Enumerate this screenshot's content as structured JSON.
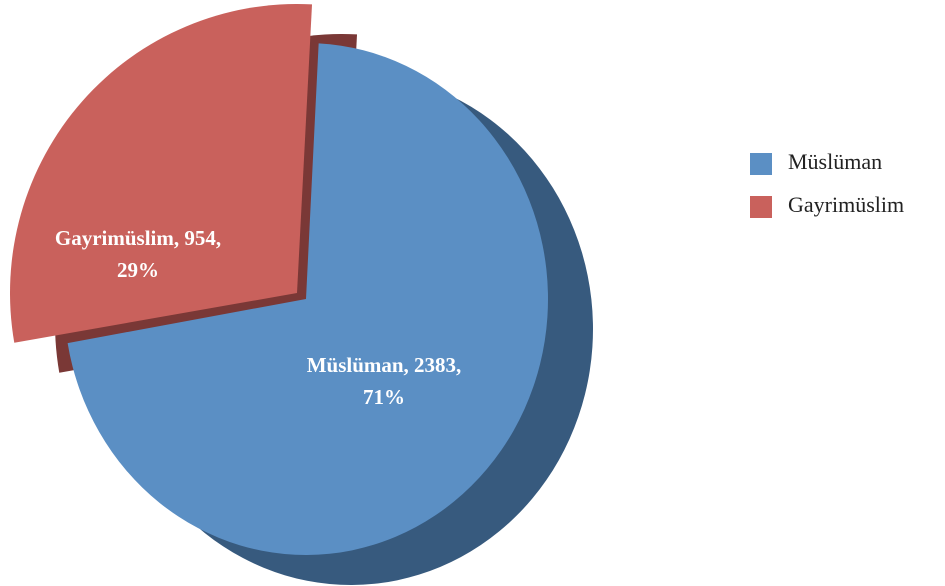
{
  "chart_data": {
    "type": "pie",
    "categories": [
      "Müslüman",
      "Gayrimüslim"
    ],
    "values": [
      2383,
      954
    ],
    "value_labels": [
      [
        "Müslüman, 2383,",
        "71%"
      ],
      [
        "Gayrimüslim, 954,",
        "29%"
      ]
    ],
    "colors": [
      "#5b8fc4",
      "#c9615c"
    ],
    "side_colors": [
      "#375a7e",
      "#7a3836"
    ],
    "legend": "right"
  }
}
